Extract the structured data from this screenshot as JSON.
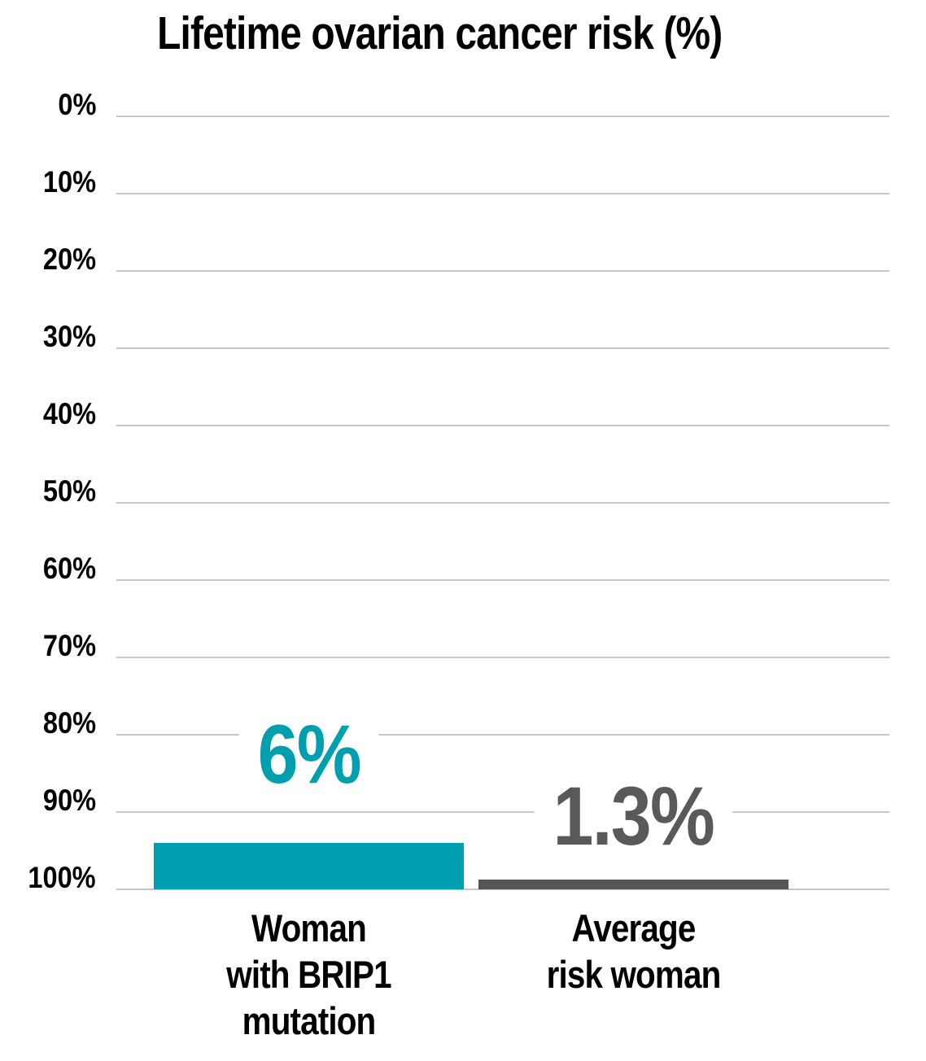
{
  "title": "Lifetime ovarian cancer risk (%)",
  "colors": {
    "background": "#ffffff",
    "text": "#000000",
    "gridline": "#c6c6c6",
    "teal_bar": "#009FAF",
    "gray_bar": "#555555",
    "teal_label": "#009FAF",
    "gray_label": "#58595B"
  },
  "chart_data": {
    "type": "bar",
    "title": "Lifetime ovarian cancer risk (%)",
    "categories": [
      "Woman with BRIP1 mutation",
      "Average risk woman"
    ],
    "category_label_lines": [
      [
        "Woman",
        "with BRIP1",
        "mutation"
      ],
      [
        "Average",
        "risk woman"
      ]
    ],
    "values": [
      6,
      1.3
    ],
    "data_labels": [
      "6%",
      "1.3%"
    ],
    "series_colors": [
      "#009FAF",
      "#555555"
    ],
    "data_label_colors": [
      "#009FAF",
      "#58595B"
    ],
    "xlabel": "",
    "ylabel": "",
    "ylim": [
      0,
      100
    ],
    "yticks": [
      100,
      90,
      80,
      70,
      60,
      50,
      40,
      30,
      20,
      10,
      0
    ],
    "ytick_labels": [
      "100%",
      "90%",
      "80%",
      "70%",
      "60%",
      "50%",
      "40%",
      "30%",
      "20%",
      "10%",
      "0%"
    ],
    "grid": true,
    "gridline_color": "#c6c6c6",
    "legend": false
  }
}
